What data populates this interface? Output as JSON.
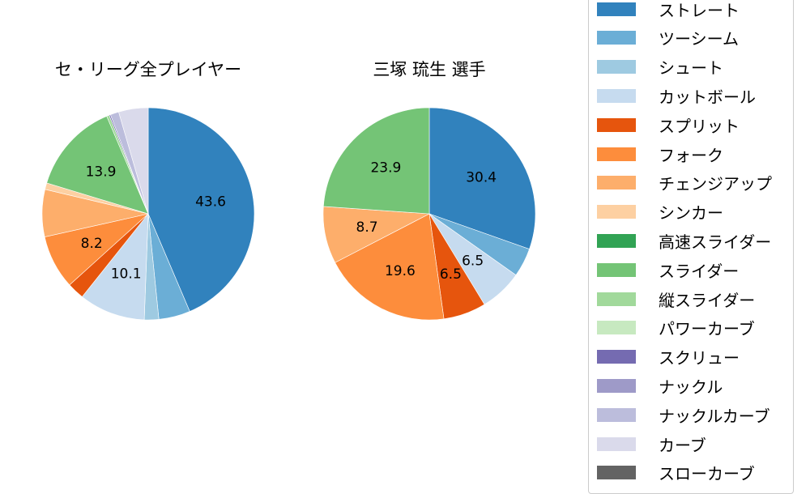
{
  "chart_data": [
    {
      "type": "pie",
      "title": "セ・リーグ全プレイヤー",
      "categories": [
        "ストレート",
        "ツーシーム",
        "シュート",
        "カットボール",
        "スプリット",
        "フォーク",
        "チェンジアップ",
        "シンカー",
        "スライダー",
        "縦スライダー",
        "スクリュー",
        "ナックルカーブ",
        "カーブ"
      ],
      "values": [
        43.6,
        4.8,
        2.2,
        10.1,
        2.6,
        8.2,
        7.2,
        1.0,
        13.9,
        0.4,
        0.2,
        1.3,
        4.5
      ],
      "labels_shown": [
        "43.6",
        "10.1",
        "8.2",
        "13.9"
      ],
      "start_angle": 90,
      "direction": "clockwise"
    },
    {
      "type": "pie",
      "title": "三塚 琉生  選手",
      "categories": [
        "ストレート",
        "ツーシーム",
        "カットボール",
        "スプリット",
        "フォーク",
        "チェンジアップ",
        "スライダー"
      ],
      "values": [
        30.4,
        4.4,
        6.5,
        6.5,
        19.6,
        8.7,
        23.9
      ],
      "labels_shown": [
        "30.4",
        "6.5",
        "6.5",
        "19.6",
        "8.7",
        "23.9"
      ],
      "start_angle": 90,
      "direction": "clockwise"
    }
  ],
  "titles": {
    "left": "セ・リーグ全プレイヤー",
    "right": "三塚 琉生  選手"
  },
  "legend": [
    {
      "label": "ストレート",
      "color": "#3182bd"
    },
    {
      "label": "ツーシーム",
      "color": "#6baed6"
    },
    {
      "label": "シュート",
      "color": "#9ecae1"
    },
    {
      "label": "カットボール",
      "color": "#c6dbef"
    },
    {
      "label": "スプリット",
      "color": "#e6550d"
    },
    {
      "label": "フォーク",
      "color": "#fd8d3c"
    },
    {
      "label": "チェンジアップ",
      "color": "#fdae6b"
    },
    {
      "label": "シンカー",
      "color": "#fdd0a2"
    },
    {
      "label": "高速スライダー",
      "color": "#31a354"
    },
    {
      "label": "スライダー",
      "color": "#74c476"
    },
    {
      "label": "縦スライダー",
      "color": "#a1d99b"
    },
    {
      "label": "パワーカーブ",
      "color": "#c7e9c0"
    },
    {
      "label": "スクリュー",
      "color": "#756bb1"
    },
    {
      "label": "ナックル",
      "color": "#9e9ac8"
    },
    {
      "label": "ナックルカーブ",
      "color": "#bcbddc"
    },
    {
      "label": "カーブ",
      "color": "#dadaeb"
    },
    {
      "label": "スローカーブ",
      "color": "#636363"
    }
  ],
  "colors": {
    "ストレート": "#3182bd",
    "ツーシーム": "#6baed6",
    "シュート": "#9ecae1",
    "カットボール": "#c6dbef",
    "スプリット": "#e6550d",
    "フォーク": "#fd8d3c",
    "チェンジアップ": "#fdae6b",
    "シンカー": "#fdd0a2",
    "高速スライダー": "#31a354",
    "スライダー": "#74c476",
    "縦スライダー": "#a1d99b",
    "パワーカーブ": "#c7e9c0",
    "スクリュー": "#756bb1",
    "ナックル": "#9e9ac8",
    "ナックルカーブ": "#bcbddc",
    "カーブ": "#dadaeb",
    "スローカーブ": "#636363"
  }
}
